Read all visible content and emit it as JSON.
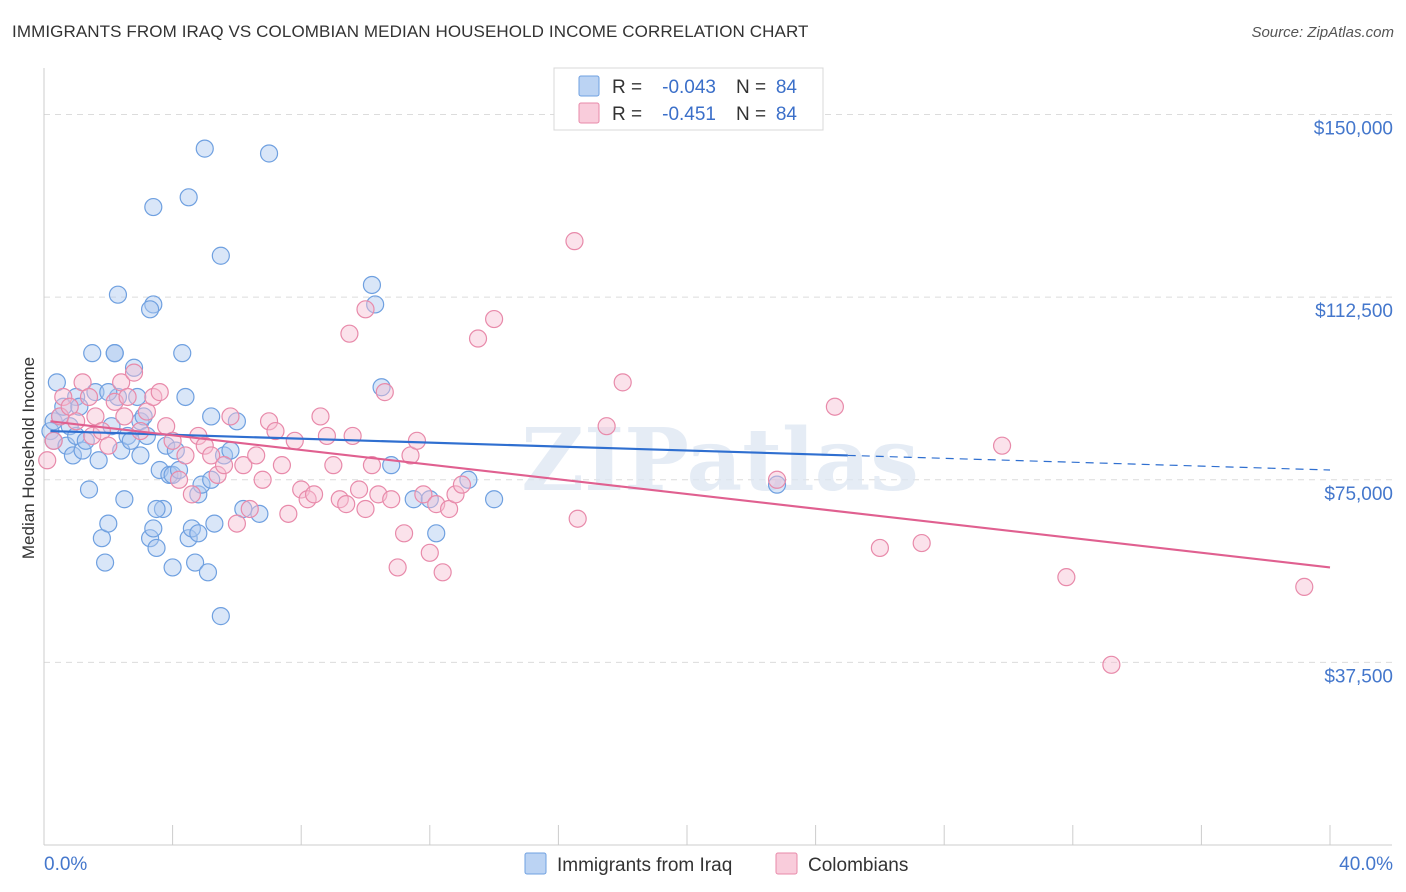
{
  "title": "IMMIGRANTS FROM IRAQ VS COLOMBIAN MEDIAN HOUSEHOLD INCOME CORRELATION CHART",
  "source": "Source: ZipAtlas.com",
  "watermark": "ZIPatlas",
  "chart_data": {
    "type": "scatter",
    "ylabel": "Median Household Income",
    "xlim": [
      0,
      40
    ],
    "ylim": [
      0,
      157500
    ],
    "x_ticks": [
      "0.0%",
      "40.0%"
    ],
    "y_ticks": [
      {
        "value": 37500,
        "label": "$37,500"
      },
      {
        "value": 75000,
        "label": "$75,000"
      },
      {
        "value": 112500,
        "label": "$112,500"
      },
      {
        "value": 150000,
        "label": "$150,000"
      }
    ],
    "grid": true,
    "legend_position": "top-center",
    "series": [
      {
        "name": "Immigrants from Iraq",
        "r_label": "R =",
        "r_value": "-0.043",
        "n_label": "N =",
        "n_value": "84",
        "color": "#6fa0e0",
        "fill": "#aac8f0",
        "line_color": "#2f6fd0",
        "trend": {
          "x0": 0.2,
          "y0": 85000,
          "x1": 25,
          "y1": 80000,
          "dash_x1": 40,
          "dash_y1": 77000
        },
        "points": [
          [
            0.2,
            85
          ],
          [
            0.3,
            87
          ],
          [
            0.3,
            83
          ],
          [
            0.4,
            95
          ],
          [
            0.5,
            88
          ],
          [
            0.6,
            90
          ],
          [
            0.7,
            82
          ],
          [
            0.8,
            86
          ],
          [
            0.9,
            80
          ],
          [
            1.0,
            84
          ],
          [
            1.0,
            92
          ],
          [
            1.1,
            90
          ],
          [
            1.2,
            81
          ],
          [
            1.3,
            83
          ],
          [
            1.4,
            73
          ],
          [
            1.5,
            101
          ],
          [
            1.6,
            93
          ],
          [
            1.7,
            79
          ],
          [
            1.8,
            63
          ],
          [
            1.9,
            58
          ],
          [
            2.0,
            66
          ],
          [
            2.1,
            86
          ],
          [
            2.2,
            101
          ],
          [
            2.3,
            92
          ],
          [
            2.4,
            81
          ],
          [
            2.5,
            71
          ],
          [
            2.6,
            84
          ],
          [
            2.7,
            83
          ],
          [
            2.8,
            98
          ],
          [
            2.9,
            92
          ],
          [
            2.2,
            101
          ],
          [
            2.3,
            113
          ],
          [
            3.0,
            87
          ],
          [
            3.1,
            88
          ],
          [
            3.2,
            84
          ],
          [
            3.3,
            63
          ],
          [
            3.4,
            65
          ],
          [
            3.5,
            61
          ],
          [
            3.6,
            77
          ],
          [
            3.7,
            69
          ],
          [
            3.8,
            82
          ],
          [
            3.9,
            76
          ],
          [
            4.0,
            76
          ],
          [
            4.1,
            81
          ],
          [
            4.2,
            77
          ],
          [
            3.4,
            111
          ],
          [
            3.3,
            110
          ],
          [
            4.3,
            101
          ],
          [
            4.4,
            92
          ],
          [
            4.5,
            63
          ],
          [
            4.6,
            65
          ],
          [
            4.7,
            58
          ],
          [
            4.8,
            72
          ],
          [
            4.9,
            74
          ],
          [
            5.0,
            143
          ],
          [
            3.4,
            131
          ],
          [
            4.5,
            133
          ],
          [
            5.1,
            56
          ],
          [
            5.2,
            75
          ],
          [
            5.3,
            66
          ],
          [
            5.6,
            80
          ],
          [
            5.8,
            81
          ],
          [
            5.5,
            47
          ],
          [
            5.2,
            88
          ],
          [
            6.0,
            87
          ],
          [
            5.5,
            121
          ],
          [
            6.7,
            68
          ],
          [
            7.0,
            142
          ],
          [
            6.2,
            69
          ],
          [
            4.8,
            64
          ],
          [
            3.5,
            69
          ],
          [
            4.0,
            57
          ],
          [
            10.2,
            115
          ],
          [
            10.3,
            111
          ],
          [
            10.5,
            94
          ],
          [
            10.8,
            78
          ],
          [
            11.5,
            71
          ],
          [
            12.0,
            71
          ],
          [
            12.2,
            64
          ],
          [
            13.2,
            75
          ],
          [
            14.0,
            71
          ],
          [
            22.8,
            74
          ],
          [
            3.0,
            80
          ],
          [
            2.0,
            93
          ]
        ]
      },
      {
        "name": "Colombians",
        "r_label": "R =",
        "r_value": "-0.451",
        "n_label": "N =",
        "n_value": "84",
        "color": "#e88aaa",
        "fill": "#f7bfd2",
        "line_color": "#e06090",
        "trend": {
          "x0": 0.2,
          "y0": 87000,
          "x1": 40,
          "y1": 57000
        },
        "points": [
          [
            0.1,
            79
          ],
          [
            0.3,
            83
          ],
          [
            0.5,
            88
          ],
          [
            0.6,
            92
          ],
          [
            0.8,
            90
          ],
          [
            1.0,
            87
          ],
          [
            1.2,
            95
          ],
          [
            1.4,
            92
          ],
          [
            1.5,
            84
          ],
          [
            1.6,
            88
          ],
          [
            1.8,
            85
          ],
          [
            2.0,
            82
          ],
          [
            2.2,
            91
          ],
          [
            2.4,
            95
          ],
          [
            2.5,
            88
          ],
          [
            2.6,
            92
          ],
          [
            2.8,
            97
          ],
          [
            3.0,
            85
          ],
          [
            3.2,
            89
          ],
          [
            3.4,
            92
          ],
          [
            3.6,
            93
          ],
          [
            3.8,
            86
          ],
          [
            4.0,
            83
          ],
          [
            4.2,
            75
          ],
          [
            4.4,
            80
          ],
          [
            4.6,
            72
          ],
          [
            4.8,
            84
          ],
          [
            5.0,
            82
          ],
          [
            5.2,
            80
          ],
          [
            5.4,
            76
          ],
          [
            5.6,
            78
          ],
          [
            5.8,
            88
          ],
          [
            6.0,
            66
          ],
          [
            6.2,
            78
          ],
          [
            6.4,
            69
          ],
          [
            6.6,
            80
          ],
          [
            6.8,
            75
          ],
          [
            7.0,
            87
          ],
          [
            7.2,
            85
          ],
          [
            7.4,
            78
          ],
          [
            7.6,
            68
          ],
          [
            7.8,
            83
          ],
          [
            8.0,
            73
          ],
          [
            8.2,
            71
          ],
          [
            8.4,
            72
          ],
          [
            8.6,
            88
          ],
          [
            8.8,
            84
          ],
          [
            9.0,
            78
          ],
          [
            9.2,
            71
          ],
          [
            9.4,
            70
          ],
          [
            9.6,
            84
          ],
          [
            9.8,
            73
          ],
          [
            10.0,
            69
          ],
          [
            10.2,
            78
          ],
          [
            10.4,
            72
          ],
          [
            10.6,
            93
          ],
          [
            10.8,
            71
          ],
          [
            11.0,
            57
          ],
          [
            11.2,
            64
          ],
          [
            11.4,
            80
          ],
          [
            11.6,
            83
          ],
          [
            11.8,
            72
          ],
          [
            12.0,
            60
          ],
          [
            12.2,
            70
          ],
          [
            12.4,
            56
          ],
          [
            12.6,
            69
          ],
          [
            12.8,
            72
          ],
          [
            13.0,
            74
          ],
          [
            13.5,
            104
          ],
          [
            14.0,
            108
          ],
          [
            9.5,
            105
          ],
          [
            10.0,
            110
          ],
          [
            16.5,
            124
          ],
          [
            16.6,
            67
          ],
          [
            17.5,
            86
          ],
          [
            18.0,
            95
          ],
          [
            22.8,
            75
          ],
          [
            24.6,
            90
          ],
          [
            26.0,
            61
          ],
          [
            27.3,
            62
          ],
          [
            29.8,
            82
          ],
          [
            31.8,
            55
          ],
          [
            33.2,
            37
          ],
          [
            39.2,
            53
          ]
        ]
      }
    ]
  }
}
